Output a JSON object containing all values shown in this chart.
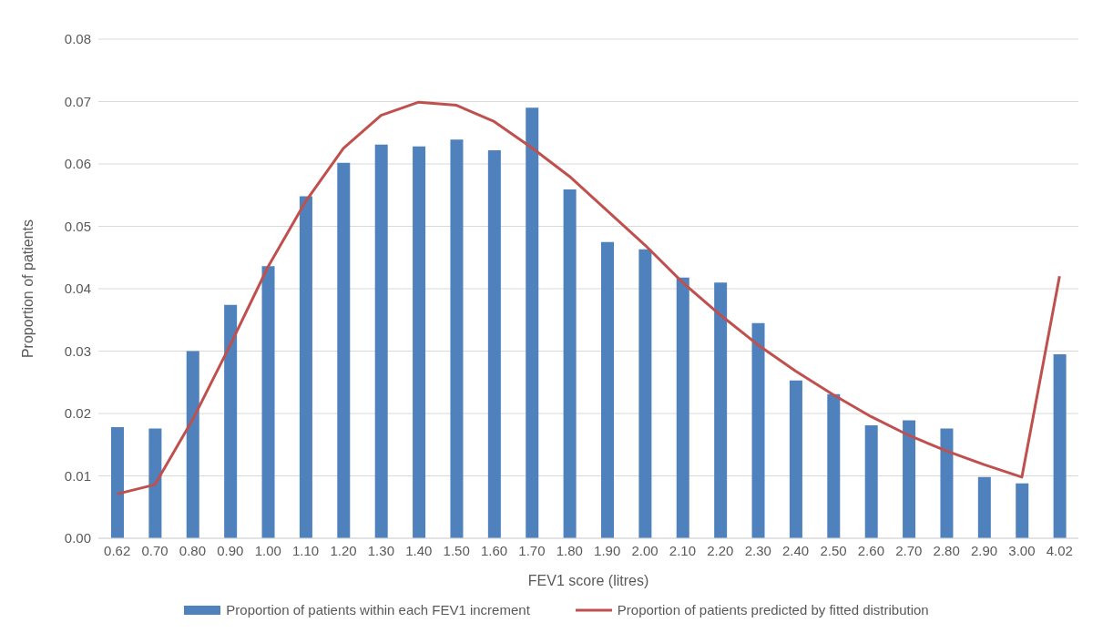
{
  "chart_data": {
    "type": "bar",
    "xlabel": "FEV1 score (litres)",
    "ylabel": "Proportion of patients",
    "categories": [
      "0.62",
      "0.70",
      "0.80",
      "0.90",
      "1.00",
      "1.10",
      "1.20",
      "1.30",
      "1.40",
      "1.50",
      "1.60",
      "1.70",
      "1.80",
      "1.90",
      "2.00",
      "2.10",
      "2.20",
      "2.30",
      "2.40",
      "2.50",
      "2.60",
      "2.70",
      "2.80",
      "2.90",
      "3.00",
      "4.02"
    ],
    "series": [
      {
        "name": "Proportion of patients within each FEV1 increment",
        "color": "#4f81bd",
        "values": [
          0.0178,
          0.0176,
          0.03,
          0.0374,
          0.0436,
          0.0548,
          0.0602,
          0.0631,
          0.0628,
          0.0639,
          0.0622,
          0.069,
          0.0559,
          0.0475,
          0.0463,
          0.0418,
          0.041,
          0.0345,
          0.0253,
          0.0231,
          0.0181,
          0.0189,
          0.0176,
          0.0098,
          0.0088,
          0.0295
        ]
      },
      {
        "name": "Proportion of patients predicted by fitted distribution",
        "type": "line",
        "color": "#c0504d",
        "values": [
          0.0071,
          0.0086,
          0.019,
          0.031,
          0.0435,
          0.054,
          0.0625,
          0.0678,
          0.0699,
          0.0694,
          0.0668,
          0.0626,
          0.058,
          0.0525,
          0.047,
          0.041,
          0.0358,
          0.031,
          0.0268,
          0.023,
          0.0195,
          0.0165,
          0.014,
          0.0118,
          0.0098,
          0.042
        ]
      }
    ],
    "ylim": [
      0,
      0.08
    ],
    "yticks": [
      {
        "value": 0,
        "label": "0.00"
      },
      0.01,
      0.02,
      0.03,
      0.04,
      0.05,
      0.06,
      0.07,
      0.08
    ],
    "grid": "y",
    "legend": "bottom",
    "marker": "none",
    "line_style": "solid"
  }
}
